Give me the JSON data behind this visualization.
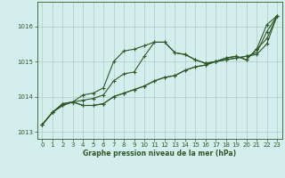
{
  "xlabel": "Graphe pression niveau de la mer (hPa)",
  "bg_color": "#d4eeed",
  "grid_color": "#b0c8c8",
  "line_color": "#2d5a27",
  "xlim": [
    -0.5,
    23.5
  ],
  "ylim": [
    1012.8,
    1016.7
  ],
  "yticks": [
    1013,
    1014,
    1015,
    1016
  ],
  "xticks": [
    0,
    1,
    2,
    3,
    4,
    5,
    6,
    7,
    8,
    9,
    10,
    11,
    12,
    13,
    14,
    15,
    16,
    17,
    18,
    19,
    20,
    21,
    22,
    23
  ],
  "series": [
    [
      1013.2,
      1013.55,
      1013.8,
      1013.85,
      1013.75,
      1013.75,
      1013.8,
      1014.0,
      1014.1,
      1014.2,
      1014.3,
      1014.45,
      1014.55,
      1014.6,
      1014.75,
      1014.85,
      1014.9,
      1015.0,
      1015.05,
      1015.1,
      1015.15,
      1015.2,
      1015.5,
      1016.3
    ],
    [
      1013.2,
      1013.55,
      1013.8,
      1013.85,
      1013.75,
      1013.75,
      1013.8,
      1014.0,
      1014.1,
      1014.2,
      1014.3,
      1014.45,
      1014.55,
      1014.6,
      1014.75,
      1014.85,
      1014.9,
      1015.0,
      1015.05,
      1015.1,
      1015.15,
      1015.25,
      1015.85,
      1016.3
    ],
    [
      1013.2,
      1013.55,
      1013.75,
      1013.85,
      1014.05,
      1014.1,
      1014.25,
      1015.0,
      1015.3,
      1015.35,
      1015.45,
      1015.55,
      1015.55,
      1015.25,
      1015.2,
      1015.05,
      1014.95,
      1015.0,
      1015.1,
      1015.15,
      1015.05,
      1015.35,
      1015.65,
      1016.3
    ],
    [
      1013.2,
      1013.55,
      1013.75,
      1013.85,
      1013.9,
      1013.95,
      1014.05,
      1014.45,
      1014.65,
      1014.7,
      1015.15,
      1015.55,
      1015.55,
      1015.25,
      1015.2,
      1015.05,
      1014.95,
      1015.0,
      1015.1,
      1015.15,
      1015.05,
      1015.35,
      1016.05,
      1016.3
    ]
  ]
}
